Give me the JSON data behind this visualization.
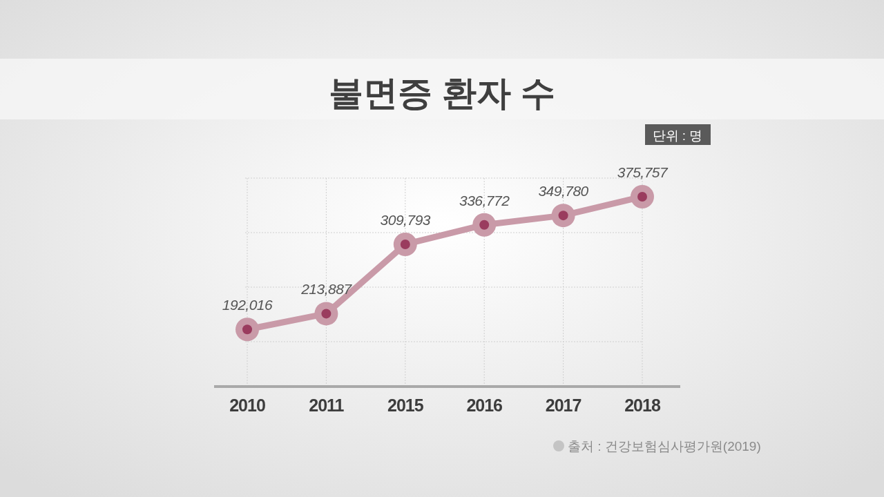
{
  "chart_data": {
    "type": "line",
    "title": "불면증 환자 수",
    "categories": [
      "2010",
      "2011",
      "2015",
      "2016",
      "2017",
      "2018"
    ],
    "series": [
      {
        "color": "#c99aa8",
        "values": [
          192016,
          213887,
          309793,
          336772,
          349780,
          375757
        ],
        "value_labels": [
          "192,016",
          "213,887",
          "309,793",
          "336,772",
          "349,780",
          "375,757"
        ]
      }
    ],
    "marker": "circle",
    "grid": true,
    "annotations": [
      "단위 : 명",
      "출처 : 건강보험심사평가원(2019)"
    ]
  }
}
